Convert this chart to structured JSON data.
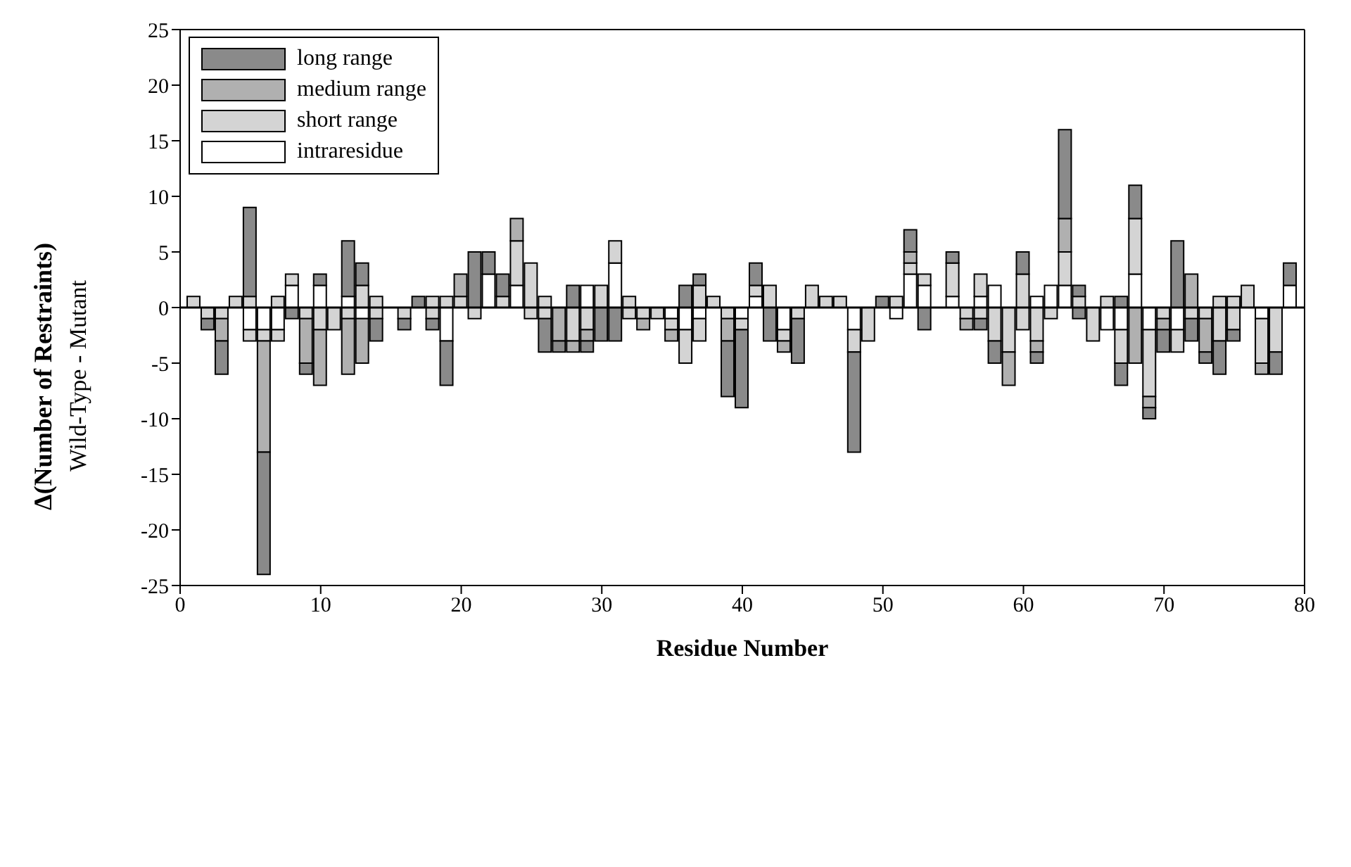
{
  "chart_data": {
    "type": "bar",
    "stacked": true,
    "xlabel": "Residue Number",
    "ylabel": "Δ(Number of Restraints)",
    "annotations": [
      "Wild-Type - Mutant"
    ],
    "x": [
      1,
      2,
      3,
      4,
      5,
      6,
      7,
      8,
      9,
      10,
      11,
      12,
      13,
      14,
      15,
      16,
      17,
      18,
      19,
      20,
      21,
      22,
      23,
      24,
      25,
      26,
      27,
      28,
      29,
      30,
      31,
      32,
      33,
      34,
      35,
      36,
      37,
      38,
      39,
      40,
      41,
      42,
      43,
      44,
      45,
      46,
      47,
      48,
      49,
      50,
      51,
      52,
      53,
      54,
      55,
      56,
      57,
      58,
      59,
      60,
      61,
      62,
      63,
      64,
      65,
      66,
      67,
      68,
      69,
      70,
      71,
      72,
      73,
      74,
      75,
      76,
      77,
      78,
      79
    ],
    "series": [
      {
        "name": "intraresidue",
        "color": "#ffffff",
        "values": [
          null,
          null,
          null,
          null,
          null,
          null,
          null,
          2,
          null,
          2,
          null,
          1,
          null,
          null,
          null,
          null,
          null,
          null,
          null,
          null,
          null,
          3,
          null,
          2,
          null,
          null,
          null,
          null,
          2,
          null,
          4,
          null,
          null,
          null,
          null,
          null,
          null,
          null,
          null,
          null,
          1,
          null,
          null,
          null,
          null,
          null,
          null,
          null,
          null,
          null,
          null,
          3,
          2,
          null,
          1,
          null,
          1,
          2,
          null,
          null,
          1,
          2,
          2,
          null,
          null,
          null,
          null,
          3,
          null,
          null,
          null,
          null,
          null,
          null,
          null,
          null,
          null,
          null,
          2
        ]
      },
      {
        "name": "short range",
        "color": "#d4d4d4",
        "values": [
          1,
          null,
          null,
          1,
          1,
          null,
          1,
          1,
          null,
          null,
          null,
          null,
          2,
          1,
          null,
          null,
          null,
          1,
          1,
          1,
          null,
          null,
          1,
          4,
          4,
          1,
          null,
          null,
          null,
          2,
          2,
          1,
          null,
          null,
          null,
          null,
          2,
          1,
          null,
          null,
          1,
          2,
          null,
          null,
          2,
          1,
          1,
          null,
          null,
          null,
          1,
          1,
          1,
          null,
          3,
          null,
          2,
          null,
          null,
          3,
          null,
          null,
          3,
          1,
          null,
          1,
          null,
          5,
          null,
          null,
          null,
          null,
          null,
          1,
          1,
          2,
          null,
          null,
          null
        ]
      },
      {
        "name": "medium range",
        "color": "#b0b0b0",
        "values": [
          null,
          null,
          null,
          null,
          null,
          null,
          null,
          null,
          null,
          null,
          null,
          null,
          null,
          null,
          null,
          null,
          null,
          null,
          null,
          2,
          null,
          null,
          null,
          2,
          null,
          null,
          null,
          null,
          null,
          null,
          null,
          null,
          null,
          null,
          null,
          null,
          null,
          null,
          null,
          null,
          null,
          null,
          null,
          null,
          null,
          null,
          null,
          null,
          null,
          null,
          null,
          1,
          null,
          null,
          null,
          null,
          null,
          null,
          null,
          null,
          null,
          null,
          3,
          null,
          null,
          null,
          null,
          null,
          null,
          null,
          null,
          3,
          null,
          null,
          null,
          null,
          null,
          null,
          null
        ]
      },
      {
        "name": "long range",
        "color": "#8a8a8a",
        "values": [
          null,
          null,
          null,
          null,
          8,
          null,
          null,
          null,
          null,
          1,
          null,
          5,
          2,
          null,
          null,
          null,
          1,
          null,
          null,
          null,
          5,
          2,
          2,
          null,
          null,
          null,
          null,
          2,
          null,
          null,
          null,
          null,
          null,
          null,
          null,
          2,
          1,
          null,
          null,
          null,
          2,
          null,
          null,
          null,
          null,
          null,
          null,
          null,
          null,
          1,
          null,
          2,
          null,
          null,
          1,
          null,
          null,
          null,
          null,
          2,
          null,
          null,
          8,
          1,
          null,
          null,
          1,
          3,
          null,
          null,
          6,
          null,
          null,
          null,
          null,
          null,
          null,
          null,
          2
        ]
      },
      {
        "color": "#ffffff",
        "values": [
          null,
          null,
          null,
          null,
          -2,
          -2,
          -2,
          null,
          null,
          null,
          null,
          null,
          -1,
          null,
          null,
          null,
          null,
          null,
          -3,
          null,
          null,
          null,
          null,
          null,
          null,
          null,
          null,
          null,
          null,
          null,
          null,
          null,
          null,
          null,
          -1,
          -2,
          -1,
          null,
          null,
          -1,
          null,
          null,
          -2,
          null,
          null,
          null,
          null,
          -2,
          null,
          null,
          -1,
          null,
          null,
          null,
          null,
          null,
          null,
          null,
          null,
          null,
          null,
          null,
          null,
          null,
          null,
          -2,
          -2,
          null,
          -2,
          null,
          -2,
          null,
          null,
          null,
          null,
          null,
          -1,
          null,
          null
        ]
      },
      {
        "color": "#d4d4d4",
        "values": [
          null,
          -1,
          -1,
          null,
          -1,
          -1,
          -1,
          null,
          -1,
          -2,
          -2,
          -1,
          null,
          -1,
          null,
          -1,
          null,
          -1,
          null,
          null,
          -1,
          null,
          null,
          null,
          -1,
          -1,
          null,
          -3,
          -2,
          null,
          null,
          -1,
          -1,
          -1,
          -1,
          -3,
          -2,
          null,
          -1,
          -1,
          null,
          null,
          -1,
          -1,
          null,
          null,
          null,
          -2,
          -3,
          null,
          null,
          null,
          null,
          null,
          null,
          -1,
          -1,
          -3,
          -4,
          -2,
          -3,
          -1,
          null,
          null,
          -3,
          null,
          -3,
          null,
          -6,
          -1,
          -2,
          -1,
          -1,
          -3,
          -2,
          null,
          -4,
          -4,
          null
        ]
      },
      {
        "color": "#b0b0b0",
        "values": [
          null,
          null,
          -2,
          null,
          null,
          -10,
          null,
          null,
          -4,
          -5,
          null,
          -5,
          -4,
          null,
          null,
          null,
          null,
          null,
          null,
          null,
          null,
          null,
          null,
          null,
          null,
          null,
          -3,
          -1,
          -1,
          null,
          null,
          null,
          -1,
          null,
          -1,
          null,
          null,
          null,
          -2,
          null,
          null,
          null,
          -1,
          null,
          null,
          null,
          null,
          null,
          null,
          null,
          null,
          null,
          null,
          null,
          null,
          -1,
          null,
          null,
          -3,
          null,
          -1,
          null,
          null,
          null,
          null,
          null,
          null,
          -5,
          -1,
          -1,
          null,
          null,
          -3,
          null,
          null,
          null,
          -1,
          null,
          null
        ]
      },
      {
        "color": "#8a8a8a",
        "values": [
          null,
          -1,
          -3,
          null,
          null,
          -11,
          null,
          -1,
          -1,
          null,
          null,
          null,
          null,
          -2,
          null,
          -1,
          null,
          -1,
          -4,
          null,
          null,
          null,
          null,
          null,
          null,
          -3,
          -1,
          null,
          -1,
          -3,
          -3,
          null,
          null,
          null,
          null,
          null,
          null,
          null,
          -5,
          -7,
          null,
          -3,
          null,
          -4,
          null,
          null,
          null,
          -9,
          null,
          null,
          null,
          null,
          -2,
          null,
          null,
          null,
          -1,
          -2,
          null,
          null,
          -1,
          null,
          null,
          -1,
          null,
          null,
          -2,
          null,
          -1,
          -2,
          null,
          -2,
          -1,
          -3,
          -1,
          null,
          null,
          -2,
          null
        ]
      }
    ],
    "xlim": [
      0,
      80
    ],
    "xticks": [
      0,
      10,
      20,
      30,
      40,
      50,
      60,
      70,
      80
    ],
    "ylim": [
      -25,
      25
    ],
    "yticks": [
      -25,
      -20,
      -15,
      -10,
      -5,
      0,
      5,
      10,
      15,
      20,
      25
    ],
    "ref_lines": [
      {
        "axis": "y",
        "value": 0,
        "color": "#000000"
      }
    ],
    "grid": false,
    "legend": "top left"
  }
}
